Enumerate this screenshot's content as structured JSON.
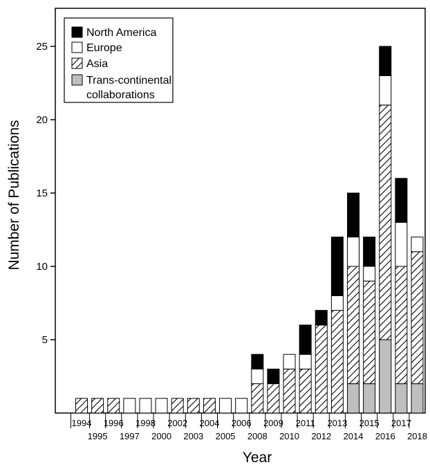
{
  "chart_data": {
    "type": "bar",
    "stacked": true,
    "xlabel": "Year",
    "ylabel": "Number of Publications",
    "ylim": [
      0,
      27.5
    ],
    "yticks": [
      5,
      10,
      15,
      20,
      25
    ],
    "grid": false,
    "legend_position": "top-left",
    "categories": [
      "1994",
      "1995",
      "1996",
      "1997",
      "1998",
      "2000",
      "2002",
      "2003",
      "2004",
      "2005",
      "2006",
      "2008",
      "2009",
      "2010",
      "2011",
      "2012",
      "2013",
      "2014",
      "2015",
      "2016",
      "2017",
      "2018"
    ],
    "series": [
      {
        "name": "Trans-continental collaborations",
        "fill": "gray",
        "values": [
          0,
          0,
          0,
          0,
          0,
          0,
          0,
          0,
          0,
          0,
          0,
          0,
          0,
          0,
          0,
          0,
          0,
          2,
          2,
          5,
          2,
          2
        ]
      },
      {
        "name": "Asia",
        "fill": "hatch",
        "values": [
          1,
          1,
          1,
          0,
          0,
          0,
          1,
          1,
          1,
          0,
          0,
          2,
          2,
          3,
          3,
          6,
          7,
          8,
          7,
          16,
          8,
          9
        ]
      },
      {
        "name": "Europe",
        "fill": "white",
        "values": [
          0,
          0,
          0,
          1,
          1,
          1,
          0,
          0,
          0,
          1,
          1,
          1,
          0,
          1,
          1,
          0,
          1,
          2,
          1,
          2,
          3,
          1
        ]
      },
      {
        "name": "North America",
        "fill": "black",
        "values": [
          0,
          0,
          0,
          0,
          0,
          0,
          0,
          0,
          0,
          0,
          0,
          1,
          1,
          0,
          2,
          1,
          4,
          3,
          2,
          2,
          3,
          0
        ]
      }
    ],
    "legend_order": [
      "North America",
      "Europe",
      "Asia",
      "Trans-continental collaborations"
    ]
  },
  "colors": {
    "black": "#000000",
    "white": "#ffffff",
    "gray": "#bfbfbf",
    "axis": "#000000"
  }
}
